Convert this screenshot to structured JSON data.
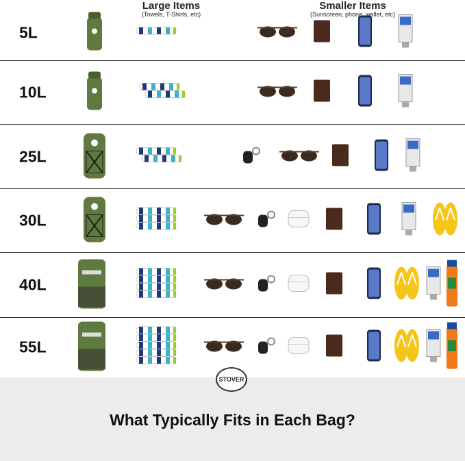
{
  "headers": {
    "large": {
      "title": "Large Items",
      "subtitle": "(Towels, T-Shirts, etc)"
    },
    "small": {
      "title": "Smaller Items",
      "subtitle": "(Sunscreen, phone, wallet, etc)"
    }
  },
  "rows": [
    {
      "size": "5L",
      "bag": "dry-bag",
      "towels": 1,
      "items": [
        "sunglasses",
        "wallet",
        "phone",
        "sunscreen"
      ]
    },
    {
      "size": "10L",
      "bag": "dry-bag",
      "towels": 2,
      "items": [
        "sunglasses",
        "wallet",
        "phone",
        "sunscreen"
      ]
    },
    {
      "size": "25L",
      "bag": "backpack",
      "towels": 4,
      "items": [
        "car-keys",
        "sunglasses",
        "wallet",
        "phone",
        "sunscreen"
      ]
    },
    {
      "size": "30L",
      "bag": "backpack",
      "towels": 3,
      "items": [
        "sunglasses",
        "car-keys",
        "earbuds",
        "wallet",
        "phone",
        "sunscreen",
        "flip-flops"
      ]
    },
    {
      "size": "40L",
      "bag": "backpack-large",
      "towels": 4,
      "items": [
        "sunglasses",
        "car-keys",
        "earbuds",
        "wallet",
        "phone",
        "flip-flops",
        "sunscreen",
        "sunscreen-spray"
      ]
    },
    {
      "size": "55L",
      "bag": "backpack-large",
      "towels": 5,
      "items": [
        "sunglasses",
        "car-keys",
        "earbuds",
        "wallet",
        "phone",
        "flip-flops",
        "sunscreen",
        "sunscreen-spray"
      ]
    }
  ],
  "logo": "STOVER",
  "footer": {
    "title": "What Typically Fits in Each Bag?"
  },
  "colors": {
    "bag": "#5f7a3e",
    "towel_blue": "#1e3a7a",
    "towel_teal": "#3cb3c9",
    "towel_green": "#9acd32",
    "footer_bg": "#ececec"
  }
}
